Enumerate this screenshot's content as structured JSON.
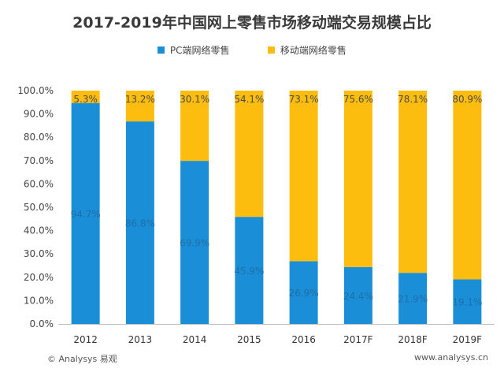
{
  "chart_data": {
    "type": "bar",
    "stacked": true,
    "title": "2017-2019年中国网上零售市场移动端交易规模占比",
    "categories": [
      "2012",
      "2013",
      "2014",
      "2015",
      "2016",
      "2017F",
      "2018F",
      "2019F"
    ],
    "series": [
      {
        "name": "PC端网络零售",
        "color": "#1a8fd8",
        "values": [
          94.7,
          86.8,
          69.9,
          45.9,
          26.9,
          24.4,
          21.9,
          19.1
        ],
        "labels": [
          "94.7%",
          "86.8%",
          "69.9%",
          "45.9%",
          "26.9%",
          "24.4%",
          "21.9%",
          "19.1%"
        ]
      },
      {
        "name": "移动端网络零售",
        "color": "#fdbd0f",
        "values": [
          5.3,
          13.2,
          30.1,
          54.1,
          73.1,
          75.6,
          78.1,
          80.9
        ],
        "labels": [
          "5.3%",
          "13.2%",
          "30.1%",
          "54.1%",
          "73.1%",
          "75.6%",
          "78.1%",
          "80.9%"
        ]
      }
    ],
    "y_ticks": [
      "0.0%",
      "10.0%",
      "20.0%",
      "30.0%",
      "40.0%",
      "50.0%",
      "60.0%",
      "70.0%",
      "80.0%",
      "90.0%",
      "100.0%"
    ],
    "ylim": [
      0,
      100
    ],
    "legend_position": "top"
  },
  "footer": {
    "source_left": "© Analysys 易观",
    "source_right": "www.analysys.cn"
  }
}
